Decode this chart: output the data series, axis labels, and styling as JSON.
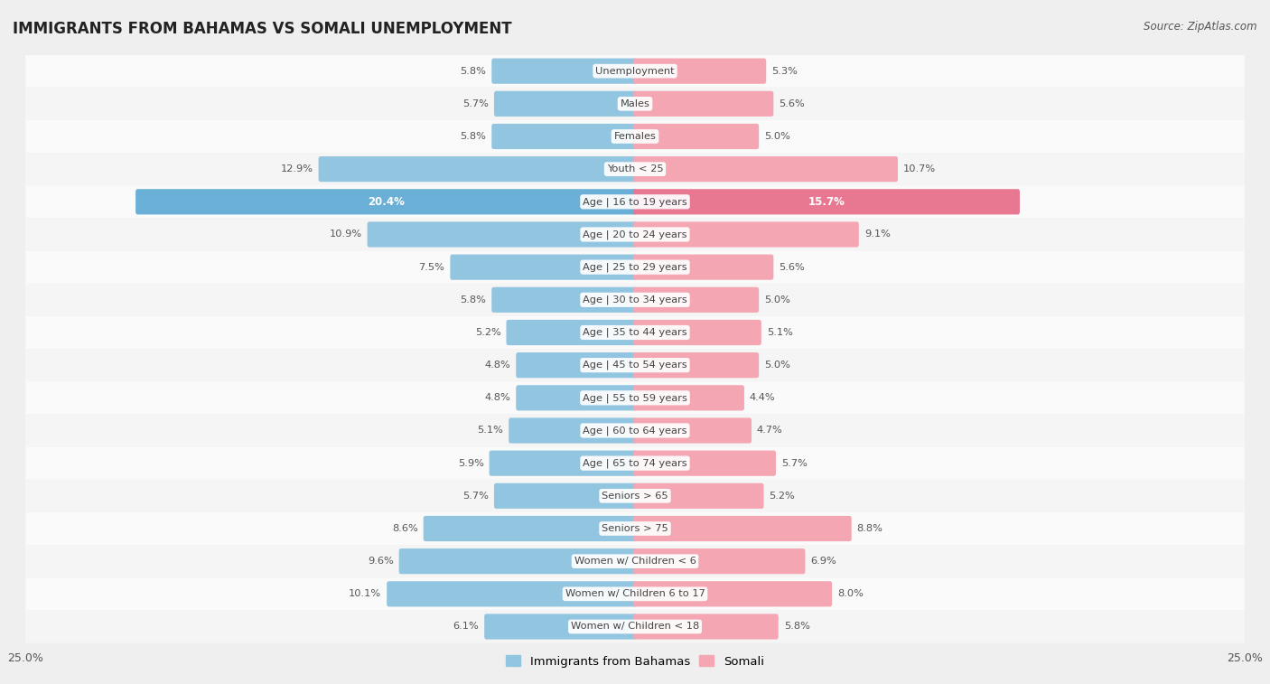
{
  "title": "IMMIGRANTS FROM BAHAMAS VS SOMALI UNEMPLOYMENT",
  "source": "Source: ZipAtlas.com",
  "categories": [
    "Unemployment",
    "Males",
    "Females",
    "Youth < 25",
    "Age | 16 to 19 years",
    "Age | 20 to 24 years",
    "Age | 25 to 29 years",
    "Age | 30 to 34 years",
    "Age | 35 to 44 years",
    "Age | 45 to 54 years",
    "Age | 55 to 59 years",
    "Age | 60 to 64 years",
    "Age | 65 to 74 years",
    "Seniors > 65",
    "Seniors > 75",
    "Women w/ Children < 6",
    "Women w/ Children 6 to 17",
    "Women w/ Children < 18"
  ],
  "bahamas_values": [
    5.8,
    5.7,
    5.8,
    12.9,
    20.4,
    10.9,
    7.5,
    5.8,
    5.2,
    4.8,
    4.8,
    5.1,
    5.9,
    5.7,
    8.6,
    9.6,
    10.1,
    6.1
  ],
  "somali_values": [
    5.3,
    5.6,
    5.0,
    10.7,
    15.7,
    9.1,
    5.6,
    5.0,
    5.1,
    5.0,
    4.4,
    4.7,
    5.7,
    5.2,
    8.8,
    6.9,
    8.0,
    5.8
  ],
  "bahamas_color": "#92C5E0",
  "somali_color": "#F4A7B2",
  "bahamas_highlight_color": "#6AAFD6",
  "somali_highlight_color": "#E87892",
  "axis_limit": 25.0,
  "bar_height": 0.62,
  "background_color": "#efefef",
  "row_bg_odd": "#f5f5f5",
  "row_bg_even": "#fafafa",
  "legend_bahamas": "Immigrants from Bahamas",
  "legend_somali": "Somali",
  "text_color": "#555555",
  "title_color": "#222222",
  "highlight_idx": 4
}
